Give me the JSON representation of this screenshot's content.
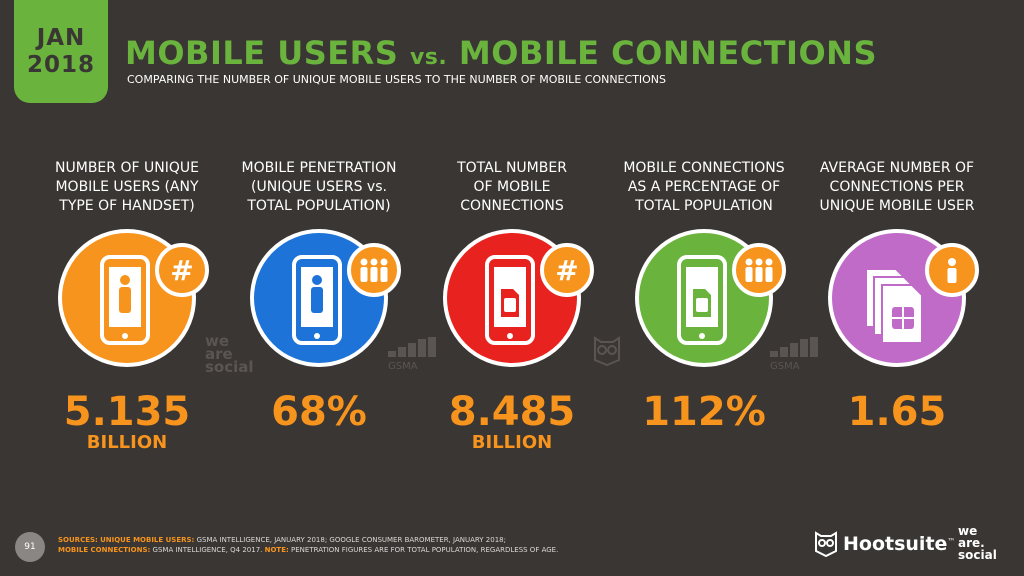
{
  "header": {
    "date_month": "JAN",
    "date_year": "2018",
    "title_part1": "MOBILE USERS ",
    "title_vs": "vs.",
    "title_part2": " MOBILE CONNECTIONS",
    "subtitle": "COMPARING THE NUMBER OF UNIQUE MOBILE USERS TO THE NUMBER OF MOBILE CONNECTIONS"
  },
  "stats": [
    {
      "label_lines": [
        "NUMBER OF UNIQUE",
        "MOBILE USERS (ANY",
        "TYPE OF HANDSET)"
      ],
      "value": "5.135",
      "unit": "BILLION",
      "circle_color": "#f7941d",
      "icon": "smartphone-person-icon",
      "badge_icon": "hash-icon"
    },
    {
      "label_lines": [
        "MOBILE PENETRATION",
        "(UNIQUE USERS vs.",
        "TOTAL POPULATION)"
      ],
      "value": "68%",
      "unit": "",
      "circle_color": "#1e73d8",
      "icon": "smartphone-person-icon",
      "badge_icon": "people-icon"
    },
    {
      "label_lines": [
        "TOTAL NUMBER",
        "OF MOBILE",
        "CONNECTIONS"
      ],
      "value": "8.485",
      "unit": "BILLION",
      "circle_color": "#e8231f",
      "icon": "smartphone-sim-icon",
      "badge_icon": "hash-icon"
    },
    {
      "label_lines": [
        "MOBILE CONNECTIONS",
        "AS A PERCENTAGE OF",
        "TOTAL POPULATION"
      ],
      "value": "112%",
      "unit": "",
      "circle_color": "#6ab43e",
      "icon": "smartphone-sim-icon",
      "badge_icon": "people-icon"
    },
    {
      "label_lines": [
        "AVERAGE NUMBER OF",
        "CONNECTIONS PER",
        "UNIQUE MOBILE USER"
      ],
      "value": "1.65",
      "unit": "",
      "circle_color": "#c06bc8",
      "icon": "sim-cards-icon",
      "badge_icon": "person-icon"
    }
  ],
  "watermarks": {
    "was_line1": "we",
    "was_line2": "are",
    "was_line3": "social",
    "gsma": "GSMA"
  },
  "footer": {
    "page_number": "91",
    "sources_label": "SOURCES:",
    "sources_users_label": "UNIQUE MOBILE USERS:",
    "sources_users_text": "GSMA INTELLIGENCE, JANUARY 2018; GOOGLE CONSUMER BAROMETER, JANUARY 2018;",
    "sources_connections_label": "MOBILE CONNECTIONS:",
    "sources_connections_text": "GSMA INTELLIGENCE, Q4 2017.",
    "note_label": "NOTE:",
    "note_text": "PENETRATION FIGURES ARE FOR TOTAL POPULATION, REGARDLESS OF AGE.",
    "brand1": "Hootsuite",
    "brand1_tm": "™",
    "brand2_line1": "we",
    "brand2_line2": "are.",
    "brand2_line3": "social"
  },
  "colors": {
    "background": "#3a3633",
    "accent_green": "#6ab43e",
    "accent_orange": "#f7941d"
  }
}
